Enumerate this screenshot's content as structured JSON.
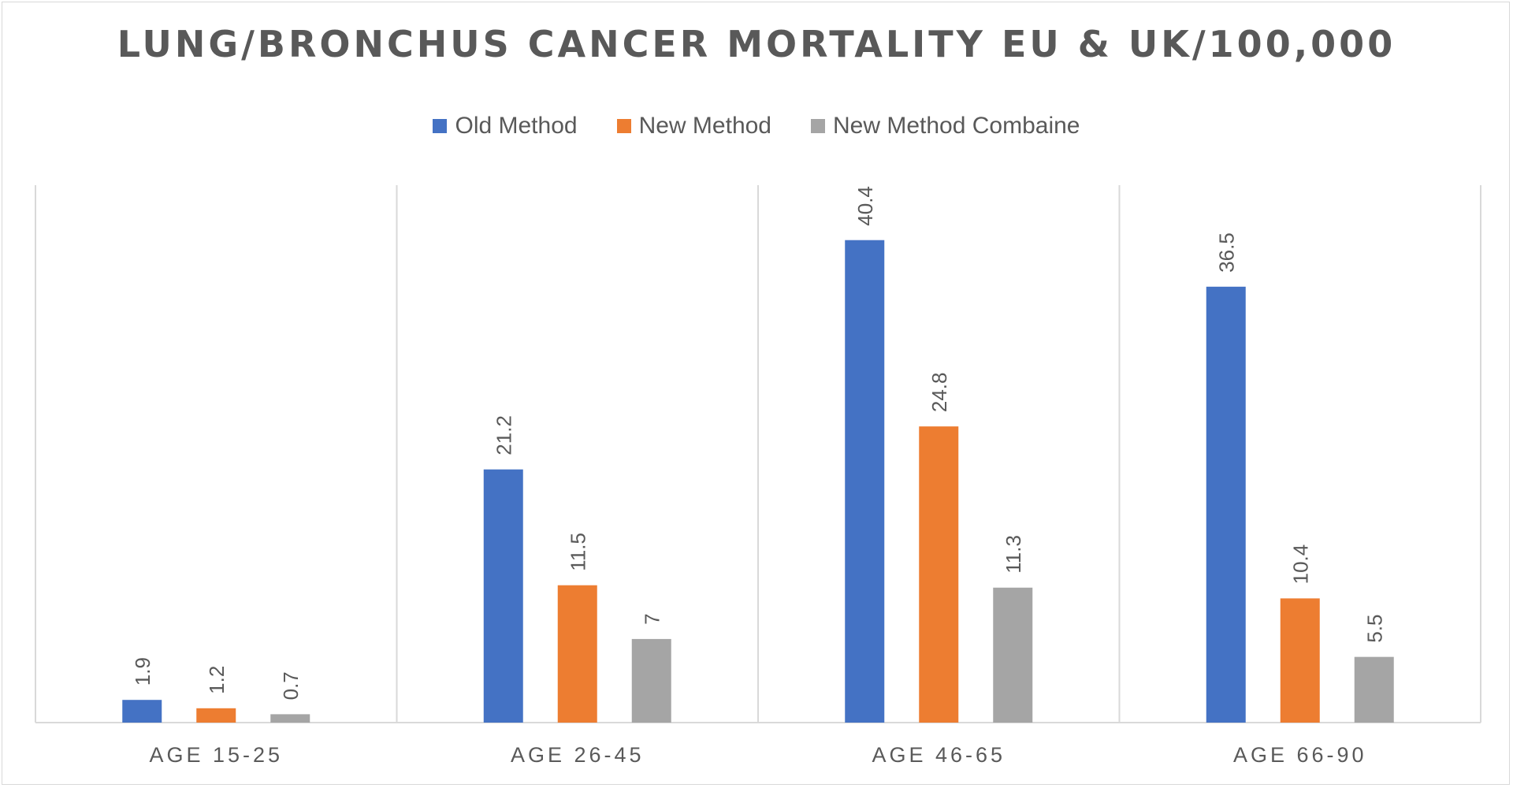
{
  "chart_data": {
    "type": "bar",
    "title": "LUNG/BRONCHUS CANCER MORTALITY EU & UK/100,000",
    "categories": [
      "AGE 15-25",
      "AGE 26-45",
      "AGE 46-65",
      "AGE 66-90"
    ],
    "series": [
      {
        "name": "Old Method",
        "color": "#4472c4",
        "values": [
          1.9,
          21.2,
          40.4,
          36.5
        ]
      },
      {
        "name": "New Method",
        "color": "#ed7d31",
        "values": [
          1.2,
          11.5,
          24.8,
          10.4
        ]
      },
      {
        "name": "New Method Combaine",
        "color": "#a5a5a5",
        "values": [
          0.7,
          7,
          11.3,
          5.5
        ]
      }
    ],
    "data_labels": [
      [
        "1.9",
        "21.2",
        "40.4",
        "36.5"
      ],
      [
        "1.2",
        "11.5",
        "24.8",
        "10.4"
      ],
      [
        "0.7",
        "7",
        "11.3",
        "5.5"
      ]
    ],
    "xlabel": "",
    "ylabel": "",
    "ylim": [
      0,
      45
    ],
    "legend_position": "top",
    "grid": "vertical category separators"
  }
}
